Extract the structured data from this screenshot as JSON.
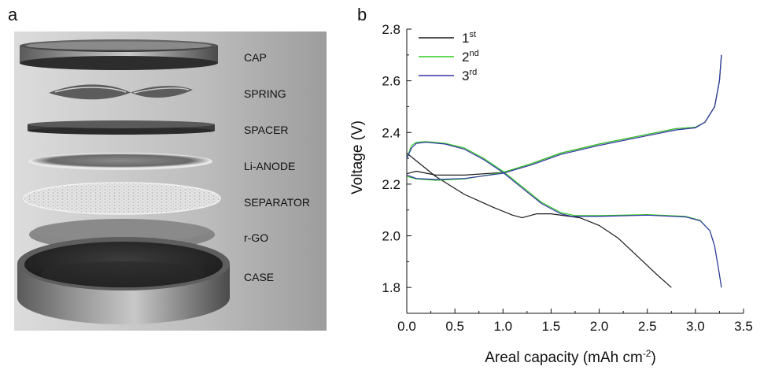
{
  "panel_a": {
    "letter": "a",
    "labels": [
      "CAP",
      "SPRING",
      "SPACER",
      "Li-ANODE",
      "SEPARATOR",
      "r-GO",
      "CASE"
    ]
  },
  "panel_b": {
    "letter": "b"
  },
  "chart_data": {
    "type": "line",
    "title": "",
    "xlabel_text": "Areal capacity (mAh cm",
    "xlabel_sup": "-2",
    "xlabel_close": ")",
    "ylabel": "Voltage (V)",
    "xlim": [
      0.0,
      3.5
    ],
    "ylim": [
      1.7,
      2.8
    ],
    "xticks": [
      0.0,
      0.5,
      1.0,
      1.5,
      2.0,
      2.5,
      3.0,
      3.5
    ],
    "xtick_labels": [
      "0.0",
      "0.5",
      "1.0",
      "1.5",
      "2.0",
      "2.5",
      "3.0",
      "3.5"
    ],
    "yticks": [
      1.8,
      2.0,
      2.2,
      2.4,
      2.6,
      2.8
    ],
    "ytick_labels": [
      "1.8",
      "2.0",
      "2.2",
      "2.4",
      "2.6",
      "2.8"
    ],
    "grid": false,
    "legend_position": "top-left",
    "series": [
      {
        "name": "1",
        "name_sup": "st",
        "color": "#1a1a1a",
        "segments": [
          {
            "x": [
              0.0,
              0.1,
              0.3,
              0.6,
              0.9,
              1.1,
              1.2,
              1.35,
              1.5,
              1.8,
              2.0,
              2.2,
              2.4,
              2.6,
              2.75
            ],
            "y": [
              2.32,
              2.29,
              2.23,
              2.16,
              2.11,
              2.08,
              2.07,
              2.085,
              2.085,
              2.07,
              2.04,
              1.99,
              1.92,
              1.85,
              1.8
            ]
          },
          {
            "x": [
              0.0,
              0.05,
              0.1,
              0.3,
              0.6,
              1.0,
              1.3,
              1.6,
              2.0,
              2.4,
              2.8,
              3.0,
              3.1,
              3.2,
              3.25,
              3.27
            ],
            "y": [
              2.24,
              2.245,
              2.25,
              2.235,
              2.235,
              2.245,
              2.28,
              2.32,
              2.355,
              2.385,
              2.415,
              2.42,
              2.44,
              2.5,
              2.6,
              2.7
            ]
          }
        ]
      },
      {
        "name": "2",
        "name_sup": "nd",
        "color": "#33cc22",
        "segments": [
          {
            "x": [
              0.0,
              0.05,
              0.1,
              0.2,
              0.4,
              0.6,
              0.8,
              1.0,
              1.2,
              1.4,
              1.6,
              1.75,
              2.0,
              2.5,
              2.9,
              3.05,
              3.15,
              3.2,
              3.25,
              3.27
            ],
            "y": [
              2.3,
              2.35,
              2.362,
              2.365,
              2.358,
              2.34,
              2.3,
              2.25,
              2.19,
              2.13,
              2.09,
              2.078,
              2.078,
              2.082,
              2.075,
              2.06,
              2.02,
              1.96,
              1.85,
              1.8
            ]
          },
          {
            "x": [
              0.0,
              0.1,
              0.3,
              0.6,
              1.0,
              1.3,
              1.6,
              2.0,
              2.4,
              2.8,
              3.0,
              3.1,
              3.2,
              3.25,
              3.27
            ],
            "y": [
              2.23,
              2.22,
              2.215,
              2.22,
              2.245,
              2.28,
              2.32,
              2.355,
              2.385,
              2.415,
              2.42,
              2.44,
              2.5,
              2.6,
              2.7
            ]
          }
        ]
      },
      {
        "name": "3",
        "name_sup": "rd",
        "color": "#3333aa",
        "segments": [
          {
            "x": [
              0.0,
              0.05,
              0.1,
              0.2,
              0.4,
              0.6,
              0.8,
              1.0,
              1.2,
              1.4,
              1.6,
              1.72,
              2.0,
              2.5,
              2.9,
              3.05,
              3.15,
              3.2,
              3.25,
              3.27
            ],
            "y": [
              2.3,
              2.34,
              2.358,
              2.362,
              2.355,
              2.335,
              2.295,
              2.245,
              2.185,
              2.125,
              2.085,
              2.075,
              2.075,
              2.08,
              2.073,
              2.058,
              2.02,
              1.96,
              1.85,
              1.8
            ]
          },
          {
            "x": [
              0.0,
              0.1,
              0.3,
              0.6,
              1.0,
              1.3,
              1.6,
              2.0,
              2.4,
              2.8,
              3.0,
              3.1,
              3.2,
              3.25,
              3.27
            ],
            "y": [
              2.235,
              2.222,
              2.218,
              2.222,
              2.242,
              2.275,
              2.315,
              2.35,
              2.38,
              2.41,
              2.418,
              2.44,
              2.5,
              2.6,
              2.7
            ]
          }
        ]
      }
    ]
  }
}
